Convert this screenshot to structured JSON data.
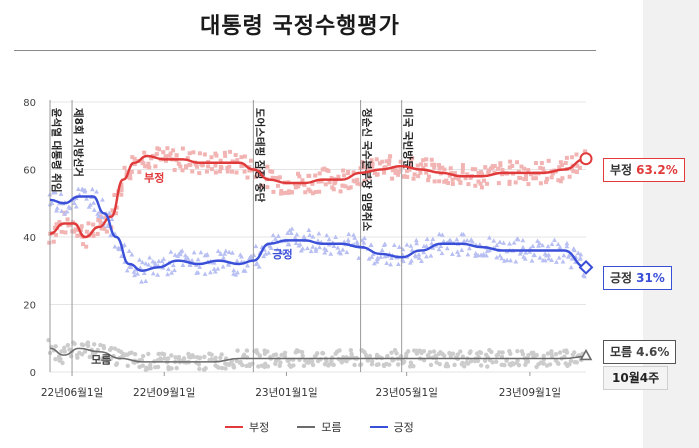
{
  "header": {
    "title": "대통령 국정수행평가"
  },
  "chart_data": {
    "type": "line",
    "ylim": [
      0,
      80
    ],
    "yticks": [
      0,
      20,
      40,
      60,
      80
    ],
    "grid": true,
    "xlim": [
      "2022-05-10",
      "2023-10-27"
    ],
    "xticks": [
      {
        "date": "2022-06-01",
        "label": "22년06월1일"
      },
      {
        "date": "2022-09-01",
        "label": "22년09월1일"
      },
      {
        "date": "2023-01-01",
        "label": "23년01월1일"
      },
      {
        "date": "2023-05-01",
        "label": "23년05월1일"
      },
      {
        "date": "2023-09-01",
        "label": "23년09월1일"
      }
    ],
    "events": [
      {
        "date": "2022-05-10",
        "label": "윤석열 대통령 취임"
      },
      {
        "date": "2022-06-01",
        "label": "제8회 지방선거"
      },
      {
        "date": "2022-11-29",
        "label": "도어스테핑 잠정 중단"
      },
      {
        "date": "2023-03-16",
        "label": "정순신 국수본부장 임명취소"
      },
      {
        "date": "2023-04-26",
        "label": "미국 국빈방문"
      }
    ],
    "series": [
      {
        "name": "부정",
        "color": "#e03a3a",
        "scatter_color": "#f2b3b3",
        "latest": "63.2%",
        "points": [
          [
            "2022-05-10",
            41
          ],
          [
            "2022-05-24",
            44
          ],
          [
            "2022-06-03",
            44
          ],
          [
            "2022-06-14",
            40
          ],
          [
            "2022-06-28",
            43
          ],
          [
            "2022-07-10",
            46
          ],
          [
            "2022-07-22",
            57
          ],
          [
            "2022-08-02",
            62
          ],
          [
            "2022-08-15",
            64
          ],
          [
            "2022-09-01",
            63
          ],
          [
            "2022-09-20",
            63
          ],
          [
            "2022-10-05",
            62
          ],
          [
            "2022-10-25",
            62
          ],
          [
            "2022-11-15",
            62
          ],
          [
            "2022-11-29",
            60
          ],
          [
            "2022-12-15",
            57
          ],
          [
            "2023-01-01",
            56
          ],
          [
            "2023-01-20",
            56
          ],
          [
            "2023-02-05",
            57
          ],
          [
            "2023-02-25",
            57
          ],
          [
            "2023-03-16",
            59
          ],
          [
            "2023-04-05",
            60
          ],
          [
            "2023-04-26",
            61
          ],
          [
            "2023-05-15",
            60
          ],
          [
            "2023-06-05",
            59
          ],
          [
            "2023-06-25",
            58
          ],
          [
            "2023-07-15",
            58
          ],
          [
            "2023-08-05",
            59
          ],
          [
            "2023-08-25",
            59
          ],
          [
            "2023-09-15",
            59
          ],
          [
            "2023-10-05",
            60
          ],
          [
            "2023-10-27",
            63.2
          ]
        ]
      },
      {
        "name": "모름",
        "color": "#6b6b6b",
        "scatter_color": "#cccccc",
        "latest": "4.6%",
        "points": [
          [
            "2022-05-10",
            7
          ],
          [
            "2022-05-24",
            5
          ],
          [
            "2022-06-08",
            7
          ],
          [
            "2022-06-28",
            6
          ],
          [
            "2022-07-20",
            4
          ],
          [
            "2022-08-10",
            3
          ],
          [
            "2022-09-01",
            3
          ],
          [
            "2022-09-25",
            3
          ],
          [
            "2022-10-20",
            3
          ],
          [
            "2022-11-15",
            4
          ],
          [
            "2022-12-10",
            4
          ],
          [
            "2023-01-05",
            4
          ],
          [
            "2023-02-05",
            4
          ],
          [
            "2023-03-05",
            4
          ],
          [
            "2023-04-05",
            4
          ],
          [
            "2023-05-05",
            4
          ],
          [
            "2023-06-05",
            4
          ],
          [
            "2023-07-05",
            4
          ],
          [
            "2023-08-05",
            4
          ],
          [
            "2023-09-05",
            4
          ],
          [
            "2023-10-05",
            4
          ],
          [
            "2023-10-27",
            4.6
          ]
        ]
      },
      {
        "name": "긍정",
        "color": "#3a4fd8",
        "scatter_color": "#b8bff2",
        "latest": "31%",
        "points": [
          [
            "2022-05-10",
            51
          ],
          [
            "2022-05-24",
            50
          ],
          [
            "2022-06-08",
            52
          ],
          [
            "2022-06-22",
            52
          ],
          [
            "2022-07-03",
            47
          ],
          [
            "2022-07-15",
            40
          ],
          [
            "2022-07-28",
            32
          ],
          [
            "2022-08-10",
            30
          ],
          [
            "2022-08-25",
            31
          ],
          [
            "2022-09-15",
            33
          ],
          [
            "2022-10-05",
            32
          ],
          [
            "2022-10-25",
            33
          ],
          [
            "2022-11-15",
            32
          ],
          [
            "2022-11-29",
            33
          ],
          [
            "2022-12-15",
            38
          ],
          [
            "2023-01-01",
            39
          ],
          [
            "2023-01-20",
            39
          ],
          [
            "2023-02-05",
            38
          ],
          [
            "2023-02-25",
            38
          ],
          [
            "2023-03-16",
            37
          ],
          [
            "2023-04-05",
            35
          ],
          [
            "2023-04-26",
            34
          ],
          [
            "2023-05-15",
            36
          ],
          [
            "2023-06-05",
            38
          ],
          [
            "2023-06-25",
            38
          ],
          [
            "2023-07-15",
            37
          ],
          [
            "2023-08-05",
            36
          ],
          [
            "2023-08-25",
            36
          ],
          [
            "2023-09-15",
            36
          ],
          [
            "2023-10-05",
            36
          ],
          [
            "2023-10-27",
            31
          ]
        ]
      }
    ],
    "line_labels": {
      "negative": "부정",
      "positive": "긍정",
      "unknown": "모름"
    },
    "summary_boxes": [
      {
        "label": "부정",
        "value": "63.2%"
      },
      {
        "label": "긍정",
        "value": "31%"
      },
      {
        "label": "모름",
        "value": "4.6%"
      }
    ],
    "week_label": "10월4주",
    "legend": [
      "부정",
      "모름",
      "긍정"
    ]
  }
}
